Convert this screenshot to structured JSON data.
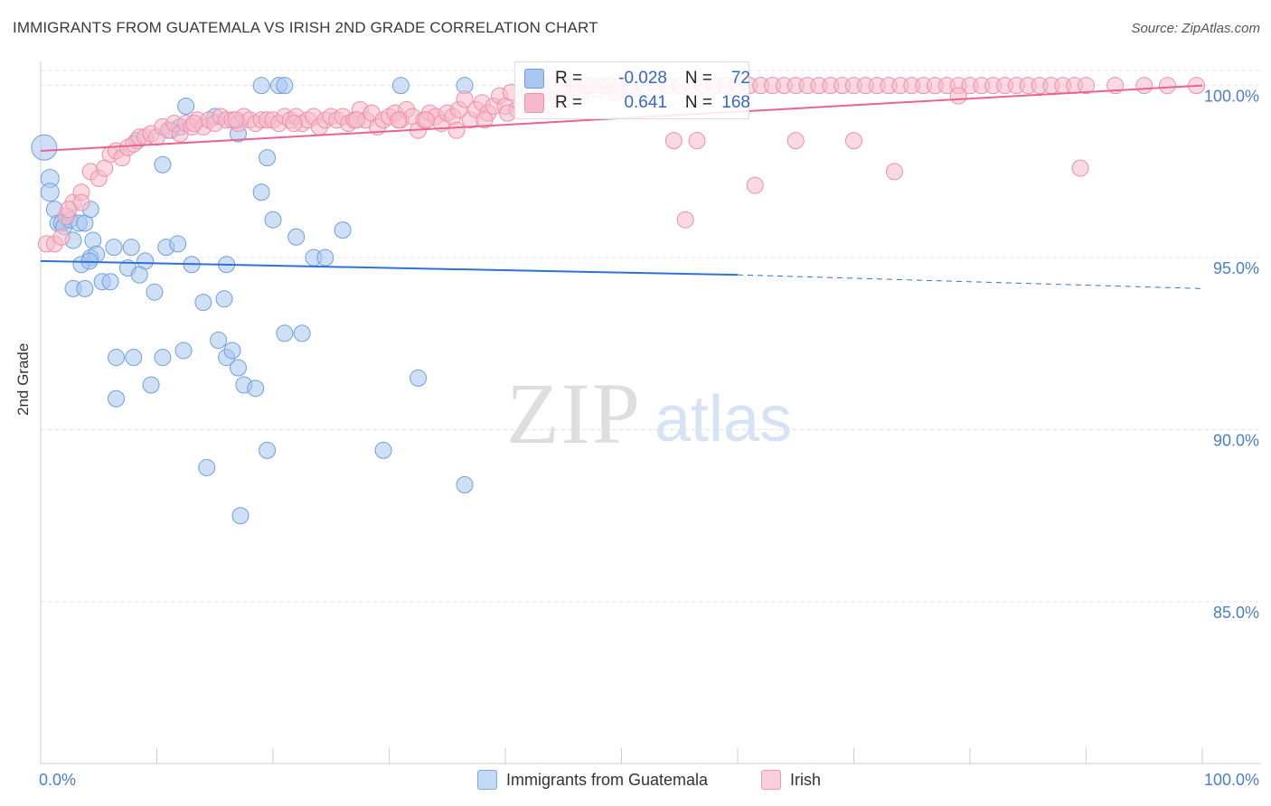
{
  "title": "IMMIGRANTS FROM GUATEMALA VS IRISH 2ND GRADE CORRELATION CHART",
  "source": "Source: ZipAtlas.com",
  "watermark": {
    "zip": "ZIP",
    "atlas": "atlas"
  },
  "legend": {
    "series1": "Immigrants from Guatemala",
    "series2": "Irish"
  },
  "stats": {
    "row1": {
      "r_label": "R =",
      "r_value": "-0.028",
      "n_label": "N =",
      "n_value": "72"
    },
    "row2": {
      "r_label": "R =",
      "r_value": "0.641",
      "n_label": "N =",
      "n_value": "168"
    }
  },
  "colors": {
    "blue_fill": "#a8c6ef",
    "blue_stroke": "#6f9fe0",
    "blue_line": "#2f72d6",
    "pink_fill": "#f6b9cb",
    "pink_stroke": "#ee8fac",
    "pink_line": "#e8638e",
    "tick_label": "#4a7ed0",
    "grid": "#e2e2e2"
  },
  "chart_data": {
    "type": "scatter",
    "title": "IMMIGRANTS FROM GUATEMALA VS IRISH 2ND GRADE CORRELATION CHART",
    "xlabel": "",
    "ylabel": "2nd Grade",
    "xlim": [
      0,
      100
    ],
    "ylim": [
      80.3,
      100.7
    ],
    "x_tick_labels": [
      "0.0%",
      "100.0%"
    ],
    "y_ticks": [
      85,
      90,
      95,
      100
    ],
    "y_tick_labels": [
      "85.0%",
      "90.0%",
      "95.0%",
      "100.0%"
    ],
    "series": [
      {
        "name": "Immigrants from Guatemala",
        "r": -0.028,
        "n": 72,
        "trend": {
          "x0": 0,
          "y0": 94.9,
          "x1": 60,
          "y1": 94.5,
          "dash_to_x": 100,
          "dash_to_y": 94.1
        },
        "points": [
          [
            0.3,
            98.2,
            14
          ],
          [
            0.8,
            97.3,
            10
          ],
          [
            0.8,
            96.9,
            10
          ],
          [
            1.2,
            96.4,
            9
          ],
          [
            1.5,
            96.0,
            9
          ],
          [
            1.8,
            96.0,
            9
          ],
          [
            2.0,
            95.9,
            9
          ],
          [
            2.5,
            96.1,
            9
          ],
          [
            2.8,
            95.5,
            9
          ],
          [
            3.3,
            96.0,
            9
          ],
          [
            3.8,
            96.0,
            9
          ],
          [
            4.3,
            96.4,
            9
          ],
          [
            4.5,
            95.5,
            9
          ],
          [
            4.3,
            95.0,
            9
          ],
          [
            4.8,
            95.1,
            9
          ],
          [
            3.5,
            94.8,
            9
          ],
          [
            4.2,
            94.9,
            9
          ],
          [
            2.8,
            94.1,
            9
          ],
          [
            3.8,
            94.1,
            9
          ],
          [
            6.3,
            95.3,
            9
          ],
          [
            5.3,
            94.3,
            9
          ],
          [
            6.0,
            94.3,
            9
          ],
          [
            7.8,
            95.3,
            9
          ],
          [
            7.5,
            94.7,
            9
          ],
          [
            9.0,
            94.9,
            9
          ],
          [
            8.5,
            94.5,
            9
          ],
          [
            9.8,
            94.0,
            9
          ],
          [
            10.5,
            97.7,
            9
          ],
          [
            10.8,
            95.3,
            9
          ],
          [
            11.8,
            95.4,
            9
          ],
          [
            12.0,
            98.8,
            9
          ],
          [
            12.5,
            99.4,
            9
          ],
          [
            13.0,
            94.8,
            9
          ],
          [
            14.0,
            93.7,
            9
          ],
          [
            15.0,
            99.1,
            9
          ],
          [
            15.3,
            92.6,
            9
          ],
          [
            15.8,
            93.8,
            9
          ],
          [
            16.0,
            94.8,
            9
          ],
          [
            16.0,
            92.1,
            9
          ],
          [
            16.5,
            92.3,
            9
          ],
          [
            17.0,
            91.8,
            9
          ],
          [
            17.5,
            91.3,
            9
          ],
          [
            18.5,
            91.2,
            9
          ],
          [
            17.0,
            98.6,
            9
          ],
          [
            19.0,
            96.9,
            9
          ],
          [
            19.5,
            97.9,
            9
          ],
          [
            20.0,
            96.1,
            9
          ],
          [
            19.0,
            100.0,
            9
          ],
          [
            20.5,
            100.0,
            9
          ],
          [
            21.0,
            100.0,
            9
          ],
          [
            21.0,
            92.8,
            9
          ],
          [
            22.0,
            95.6,
            9
          ],
          [
            22.5,
            92.8,
            9
          ],
          [
            23.5,
            95.0,
            9
          ],
          [
            24.5,
            95.0,
            9
          ],
          [
            26.0,
            95.8,
            9
          ],
          [
            8.0,
            92.1,
            9
          ],
          [
            9.5,
            91.3,
            9
          ],
          [
            12.3,
            92.3,
            9
          ],
          [
            10.5,
            92.1,
            9
          ],
          [
            14.3,
            88.9,
            9
          ],
          [
            17.2,
            87.5,
            9
          ],
          [
            19.5,
            89.4,
            9
          ],
          [
            29.5,
            89.4,
            9
          ],
          [
            31.0,
            100.0,
            9
          ],
          [
            32.5,
            91.5,
            9
          ],
          [
            36.5,
            88.4,
            9
          ],
          [
            36.5,
            100.0,
            9
          ],
          [
            8.3,
            98.4,
            9
          ],
          [
            6.5,
            92.1,
            9
          ],
          [
            6.5,
            90.9,
            9
          ],
          [
            11.2,
            98.7,
            9
          ]
        ]
      },
      {
        "name": "Irish",
        "r": 0.641,
        "n": 168,
        "trend": {
          "x0": 0,
          "y0": 98.1,
          "x1": 100,
          "y1": 100.0
        },
        "points": [
          [
            0.5,
            95.4,
            9
          ],
          [
            1.2,
            95.4,
            9
          ],
          [
            2.2,
            96.2,
            9
          ],
          [
            2.8,
            96.6,
            9
          ],
          [
            3.5,
            96.9,
            9
          ],
          [
            3.5,
            96.6,
            9
          ],
          [
            4.3,
            97.5,
            9
          ],
          [
            5.0,
            97.3,
            9
          ],
          [
            5.5,
            97.6,
            9
          ],
          [
            6.0,
            98.0,
            9
          ],
          [
            6.5,
            98.1,
            9
          ],
          [
            7.0,
            97.9,
            9
          ],
          [
            7.5,
            98.2,
            9
          ],
          [
            8.0,
            98.3,
            9
          ],
          [
            8.5,
            98.5,
            9
          ],
          [
            9.0,
            98.5,
            9
          ],
          [
            9.5,
            98.6,
            9
          ],
          [
            10.0,
            98.5,
            9
          ],
          [
            10.5,
            98.8,
            9
          ],
          [
            11.0,
            98.7,
            9
          ],
          [
            11.5,
            98.9,
            9
          ],
          [
            12.0,
            98.6,
            9
          ],
          [
            12.5,
            98.9,
            9
          ],
          [
            13.0,
            98.8,
            9
          ],
          [
            13.5,
            99.0,
            9
          ],
          [
            14.0,
            98.8,
            9
          ],
          [
            14.5,
            99.0,
            9
          ],
          [
            15.0,
            98.9,
            9
          ],
          [
            15.5,
            99.1,
            9
          ],
          [
            16.0,
            99.0,
            9
          ],
          [
            16.5,
            99.0,
            9
          ],
          [
            17.0,
            98.9,
            9
          ],
          [
            17.5,
            99.1,
            9
          ],
          [
            18.0,
            99.0,
            9
          ],
          [
            18.5,
            98.9,
            9
          ],
          [
            19.0,
            99.0,
            9
          ],
          [
            19.5,
            99.0,
            9
          ],
          [
            20.0,
            99.0,
            9
          ],
          [
            20.5,
            98.9,
            9
          ],
          [
            21.0,
            99.1,
            9
          ],
          [
            21.5,
            99.0,
            9
          ],
          [
            22.0,
            99.1,
            9
          ],
          [
            22.5,
            98.9,
            9
          ],
          [
            23.0,
            99.0,
            9
          ],
          [
            23.5,
            99.1,
            9
          ],
          [
            24.0,
            98.8,
            9
          ],
          [
            24.5,
            99.0,
            9
          ],
          [
            25.0,
            99.1,
            9
          ],
          [
            25.5,
            99.0,
            9
          ],
          [
            26.0,
            99.1,
            9
          ],
          [
            26.5,
            98.9,
            9
          ],
          [
            27.0,
            99.0,
            9
          ],
          [
            27.5,
            99.3,
            9
          ],
          [
            28.0,
            99.0,
            9
          ],
          [
            28.5,
            99.2,
            9
          ],
          [
            29.0,
            98.8,
            9
          ],
          [
            29.5,
            99.0,
            9
          ],
          [
            30.0,
            99.1,
            9
          ],
          [
            30.5,
            99.2,
            9
          ],
          [
            31.0,
            99.0,
            9
          ],
          [
            31.5,
            99.3,
            9
          ],
          [
            32.0,
            99.1,
            9
          ],
          [
            32.5,
            98.7,
            9
          ],
          [
            33.0,
            99.0,
            9
          ],
          [
            33.5,
            99.2,
            9
          ],
          [
            34.0,
            99.1,
            9
          ],
          [
            34.5,
            98.9,
            9
          ],
          [
            35.0,
            99.2,
            9
          ],
          [
            35.5,
            99.1,
            9
          ],
          [
            36.0,
            99.3,
            9
          ],
          [
            36.5,
            99.6,
            9
          ],
          [
            37.0,
            99.0,
            9
          ],
          [
            37.5,
            99.3,
            9
          ],
          [
            38.0,
            99.5,
            9
          ],
          [
            38.5,
            99.2,
            9
          ],
          [
            39.0,
            99.4,
            9
          ],
          [
            39.5,
            99.7,
            9
          ],
          [
            40.0,
            99.4,
            9
          ],
          [
            40.5,
            99.8,
            9
          ],
          [
            41.0,
            99.3,
            9
          ],
          [
            41.5,
            99.6,
            9
          ],
          [
            42.0,
            99.8,
            9
          ],
          [
            42.5,
            99.5,
            9
          ],
          [
            43.0,
            100.0,
            9
          ],
          [
            43.5,
            99.8,
            9
          ],
          [
            44.0,
            100.0,
            9
          ],
          [
            44.5,
            99.6,
            9
          ],
          [
            45.0,
            100.0,
            9
          ],
          [
            45.5,
            99.9,
            9
          ],
          [
            46.0,
            100.0,
            9
          ],
          [
            46.5,
            99.7,
            9
          ],
          [
            47.0,
            100.0,
            9
          ],
          [
            47.5,
            100.0,
            9
          ],
          [
            48.0,
            99.9,
            9
          ],
          [
            48.5,
            100.0,
            9
          ],
          [
            49.0,
            100.0,
            9
          ],
          [
            49.5,
            99.8,
            9
          ],
          [
            50.0,
            100.0,
            9
          ],
          [
            50.5,
            100.0,
            9
          ],
          [
            51.0,
            100.0,
            9
          ],
          [
            52.0,
            100.0,
            9
          ],
          [
            53.0,
            100.0,
            9
          ],
          [
            54.0,
            100.0,
            9
          ],
          [
            55.0,
            100.0,
            9
          ],
          [
            56.0,
            100.0,
            9
          ],
          [
            57.0,
            100.0,
            9
          ],
          [
            58.0,
            100.0,
            9
          ],
          [
            59.0,
            100.0,
            9
          ],
          [
            60.0,
            100.0,
            9
          ],
          [
            61.0,
            100.0,
            9
          ],
          [
            62.0,
            100.0,
            9
          ],
          [
            63.0,
            100.0,
            9
          ],
          [
            64.0,
            100.0,
            9
          ],
          [
            65.0,
            100.0,
            9
          ],
          [
            66.0,
            100.0,
            9
          ],
          [
            67.0,
            100.0,
            9
          ],
          [
            68.0,
            100.0,
            9
          ],
          [
            69.0,
            100.0,
            9
          ],
          [
            70.0,
            100.0,
            9
          ],
          [
            71.0,
            100.0,
            9
          ],
          [
            72.0,
            100.0,
            9
          ],
          [
            73.0,
            100.0,
            9
          ],
          [
            74.0,
            100.0,
            9
          ],
          [
            75.0,
            100.0,
            9
          ],
          [
            76.0,
            100.0,
            9
          ],
          [
            77.0,
            100.0,
            9
          ],
          [
            78.0,
            100.0,
            9
          ],
          [
            79.0,
            100.0,
            9
          ],
          [
            80.0,
            100.0,
            9
          ],
          [
            81.0,
            100.0,
            9
          ],
          [
            82.0,
            100.0,
            9
          ],
          [
            83.0,
            100.0,
            9
          ],
          [
            84.0,
            100.0,
            9
          ],
          [
            85.0,
            100.0,
            9
          ],
          [
            86.0,
            100.0,
            9
          ],
          [
            87.0,
            100.0,
            9
          ],
          [
            88.0,
            100.0,
            9
          ],
          [
            89.0,
            100.0,
            9
          ],
          [
            90.0,
            100.0,
            9
          ],
          [
            92.5,
            100.0,
            9
          ],
          [
            97.0,
            100.0,
            9
          ],
          [
            99.5,
            100.0,
            9
          ],
          [
            79.0,
            99.7,
            9
          ],
          [
            54.5,
            98.4,
            9
          ],
          [
            56.5,
            98.4,
            9
          ],
          [
            65.0,
            98.4,
            9
          ],
          [
            70.0,
            98.4,
            9
          ],
          [
            73.5,
            97.5,
            9
          ],
          [
            89.5,
            97.6,
            9
          ],
          [
            61.5,
            97.1,
            9
          ],
          [
            55.5,
            96.1,
            9
          ],
          [
            95.0,
            100.0,
            9
          ],
          [
            16.8,
            99.0,
            9
          ],
          [
            13.2,
            98.9,
            9
          ],
          [
            21.8,
            98.9,
            9
          ],
          [
            27.2,
            99.0,
            9
          ],
          [
            30.8,
            99.0,
            9
          ],
          [
            33.2,
            99.0,
            9
          ],
          [
            38.2,
            99.0,
            9
          ],
          [
            42.8,
            99.6,
            9
          ],
          [
            44.2,
            99.4,
            9
          ],
          [
            46.2,
            99.8,
            9
          ],
          [
            40.2,
            99.2,
            9
          ],
          [
            35.8,
            98.7,
            9
          ],
          [
            1.8,
            95.6,
            9
          ],
          [
            2.4,
            96.4,
            9
          ]
        ]
      }
    ]
  }
}
